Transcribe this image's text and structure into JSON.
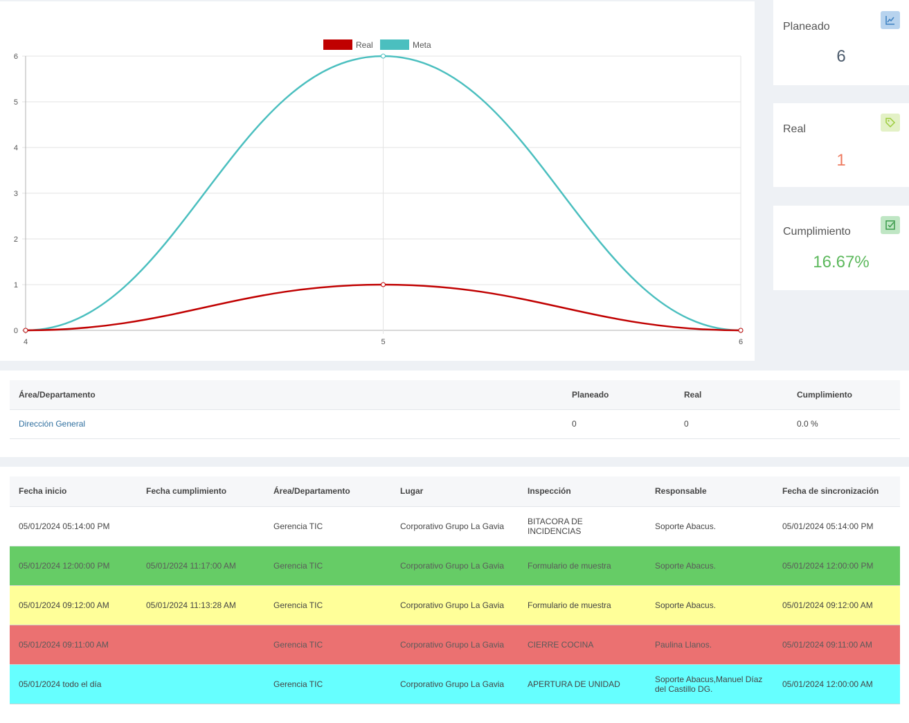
{
  "chart_data": {
    "type": "line",
    "x": [
      4,
      5,
      6
    ],
    "series": [
      {
        "name": "Real",
        "values": [
          0,
          1,
          0
        ],
        "color": "#c00000"
      },
      {
        "name": "Meta",
        "values": [
          0,
          6,
          0
        ],
        "color": "#4bbfbf"
      }
    ],
    "ylim": [
      0,
      6
    ],
    "yticks": [
      "0",
      "1",
      "2",
      "3",
      "4",
      "5",
      "6"
    ],
    "xticks": [
      "4",
      "5",
      "6"
    ],
    "grid": true,
    "legend_position": "top-center"
  },
  "stats": {
    "planned": {
      "title": "Planeado",
      "value": "6",
      "icon": "chart-line-icon",
      "color": "#4b5a6b"
    },
    "real": {
      "title": "Real",
      "value": "1",
      "icon": "tag-icon",
      "color": "#ee7a5f"
    },
    "compliance": {
      "title": "Cumplimiento",
      "value": "16.67%",
      "icon": "check-square-icon",
      "color": "#5cb85c"
    }
  },
  "summary_table": {
    "headers": [
      "Área/Departamento",
      "Planeado",
      "Real",
      "Cumplimiento"
    ],
    "rows": [
      [
        "Dirección General",
        "0",
        "0",
        "0.0 %"
      ]
    ]
  },
  "inspections_table": {
    "headers": [
      "Fecha inicio",
      "Fecha cumplimiento",
      "Área/Departamento",
      "Lugar",
      "Inspección",
      "Responsable",
      "Fecha de sincronización"
    ],
    "rows": [
      {
        "status": "none",
        "cells": [
          "05/01/2024 05:14:00 PM",
          "",
          "Gerencia TIC",
          "Corporativo Grupo La Gavia",
          "BITACORA DE INCIDENCIAS",
          "Soporte Abacus.",
          "05/01/2024 05:14:00 PM"
        ]
      },
      {
        "status": "green",
        "cells": [
          "05/01/2024 12:00:00 PM",
          "05/01/2024 11:17:00 AM",
          "Gerencia TIC",
          "Corporativo Grupo La Gavia",
          "Formulario de muestra",
          "Soporte Abacus.",
          "05/01/2024 12:00:00 PM"
        ]
      },
      {
        "status": "yellow",
        "cells": [
          "05/01/2024 09:12:00 AM",
          "05/01/2024 11:13:28 AM",
          "Gerencia TIC",
          "Corporativo Grupo La Gavia",
          "Formulario de muestra",
          "Soporte Abacus.",
          "05/01/2024 09:12:00 AM"
        ]
      },
      {
        "status": "red",
        "cells": [
          "05/01/2024 09:11:00 AM",
          "",
          "Gerencia TIC",
          "Corporativo Grupo La Gavia",
          "CIERRE COCINA",
          "Paulina Llanos.",
          "05/01/2024 09:11:00 AM"
        ]
      },
      {
        "status": "cyan",
        "cells": [
          "05/01/2024 todo el día",
          "",
          "Gerencia TIC",
          "Corporativo Grupo La Gavia",
          "APERTURA DE UNIDAD",
          "Soporte Abacus,Manuel Díaz del Castillo DG.",
          "05/01/2024 12:00:00 AM"
        ]
      }
    ]
  }
}
